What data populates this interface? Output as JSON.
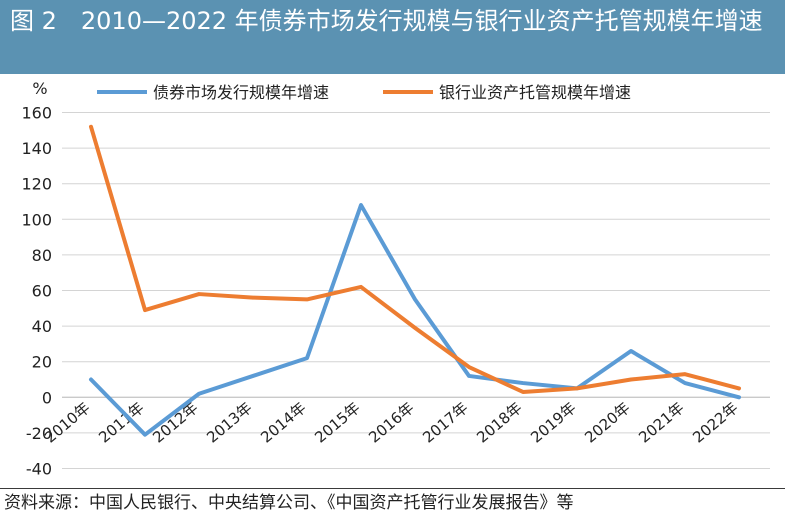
{
  "header": {
    "title": "图 2　2010—2022 年债券市场发行规模与银行业资产托管规模年增速"
  },
  "chart_data": {
    "type": "line",
    "title": "2010—2022 年债券市场发行规模与银行业资产托管规模年增速",
    "xlabel": "",
    "ylabel": "%",
    "ylim": [
      -40,
      160
    ],
    "yticks": [
      160,
      140,
      120,
      100,
      80,
      60,
      40,
      20,
      0,
      -20,
      -40
    ],
    "grid": true,
    "legend_position": "top",
    "categories": [
      "2010年",
      "2011年",
      "2012年",
      "2013年",
      "2014年",
      "2015年",
      "2016年",
      "2017年",
      "2018年",
      "2019年",
      "2020年",
      "2021年",
      "2022年"
    ],
    "series": [
      {
        "name": "债券市场发行规模年增速",
        "color": "#5b9bd5",
        "values": [
          10,
          -21,
          2,
          12,
          22,
          108,
          55,
          12,
          8,
          5,
          26,
          8,
          0
        ]
      },
      {
        "name": "银行业资产托管规模年增速",
        "color": "#ed7d31",
        "values": [
          152,
          49,
          58,
          56,
          55,
          62,
          39,
          17,
          3,
          5,
          10,
          13,
          5
        ]
      }
    ]
  },
  "source": "资料来源：中国人民银行、中央结算公司、《中国资产托管行业发展报告》等"
}
